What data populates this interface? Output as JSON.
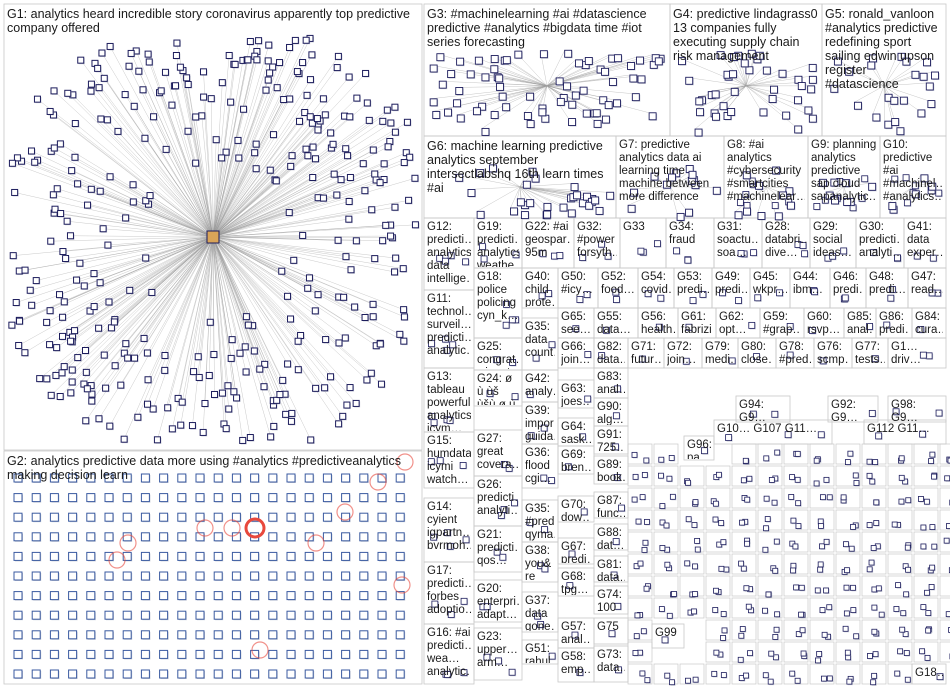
{
  "colors": {
    "edge": "#9a9a9a",
    "node_stroke": "#1c1c5c",
    "cell_border": "#c8c8c8",
    "highlight_ring": "#e8483c",
    "shadow": "#9aa0b4"
  },
  "groups": [
    {
      "id": "G1",
      "label": "G1: analytics heard incredible story coronavirus apparently top predictive company offered"
    },
    {
      "id": "G2",
      "label": "G2: analytics predictive data more using #analytics #predictiveanalytics making decision learn"
    },
    {
      "id": "G3",
      "label": "G3: #machinelearning #ai #datascience predictive #analytics #bigdata time #iot series forecasting"
    },
    {
      "id": "G4",
      "label": "G4: predictive lindagrass0 13 companies fully executing supply chain risk management"
    },
    {
      "id": "G5",
      "label": "G5: ronald_vanloon #analytics predictive redefining sport sailing edwin upson register #datascience"
    },
    {
      "id": "G6",
      "label": "G6: machine learning predictive analytics september intersectlabshq 16th learn times #ai"
    },
    {
      "id": "G7",
      "label": "G7: predictive analytics data ai learning time machine between more difference"
    },
    {
      "id": "G8",
      "label": "G8: #ai analytics #cybersecurity #smartcities #machinelear…"
    },
    {
      "id": "G9",
      "label": "G9: planning analytics predictive sap cloud sapanalytic…"
    },
    {
      "id": "G10",
      "label": "G10: predictive #ai #machinel… #analytics…"
    },
    {
      "id": "G12",
      "label": "G12: predicti… analytics data intellige…"
    },
    {
      "id": "G19",
      "label": "G19: predicti… analytics weathe…"
    },
    {
      "id": "G22",
      "label": "G22: #ai geospar… 95m"
    },
    {
      "id": "G32",
      "label": "G32: #power forsyth…"
    },
    {
      "id": "G33",
      "label": "G33"
    },
    {
      "id": "G34",
      "label": "G34: fraud"
    },
    {
      "id": "G31",
      "label": "G31: soactu… soa…"
    },
    {
      "id": "G28",
      "label": "G28: databri… dive…"
    },
    {
      "id": "G29",
      "label": "G29: social ideas…"
    },
    {
      "id": "G30",
      "label": "G30: predicti… analyti…"
    },
    {
      "id": "G41",
      "label": "G41: data exper…"
    },
    {
      "id": "G18",
      "label": "G18: police policing cyn_k…"
    },
    {
      "id": "G40",
      "label": "G40: child prote…"
    },
    {
      "id": "G50",
      "label": "G50: #icy…"
    },
    {
      "id": "G52",
      "label": "G52: food…"
    },
    {
      "id": "G54",
      "label": "G54: covid…"
    },
    {
      "id": "G53",
      "label": "G53: predi…"
    },
    {
      "id": "G49",
      "label": "G49: predi…"
    },
    {
      "id": "G45",
      "label": "G45: wkpr…"
    },
    {
      "id": "G44",
      "label": "G44: ibm…"
    },
    {
      "id": "G46",
      "label": "G46: predi…"
    },
    {
      "id": "G48",
      "label": "G48: predi…"
    },
    {
      "id": "G47",
      "label": "G47: read…"
    },
    {
      "id": "G11",
      "label": "G11: technol… surveil… predicti… analytic…"
    },
    {
      "id": "G25",
      "label": "G25: congrat… winnet…"
    },
    {
      "id": "G65",
      "label": "G65: see…"
    },
    {
      "id": "G55",
      "label": "G55: data…"
    },
    {
      "id": "G56",
      "label": "G56: health…"
    },
    {
      "id": "G61",
      "label": "G61: fabrizi…"
    },
    {
      "id": "G62",
      "label": "G62: opt…"
    },
    {
      "id": "G59",
      "label": "G59: #grap…"
    },
    {
      "id": "G60",
      "label": "G60: rsvp…"
    },
    {
      "id": "G85",
      "label": "G85: anal…"
    },
    {
      "id": "G86",
      "label": "G86: predi…"
    },
    {
      "id": "G84",
      "label": "G84: cura…"
    },
    {
      "id": "G35",
      "label": "G35: data count…"
    },
    {
      "id": "G66",
      "label": "G66: join…"
    },
    {
      "id": "G82",
      "label": "G82: data…"
    },
    {
      "id": "G71",
      "label": "G71: futur…"
    },
    {
      "id": "G72",
      "label": "G72: join…"
    },
    {
      "id": "G79",
      "label": "G79: medi…"
    },
    {
      "id": "G80",
      "label": "G80: close…"
    },
    {
      "id": "G78",
      "label": "G78: #pred…"
    },
    {
      "id": "G76",
      "label": "G76: scmp…"
    },
    {
      "id": "G77",
      "label": "G77: tests…"
    },
    {
      "id": "G1x",
      "label": "G1… driv…"
    },
    {
      "id": "G13",
      "label": "G13: tableau powerful analytics icym…"
    },
    {
      "id": "G42",
      "label": "G42: analy…"
    },
    {
      "id": "G83",
      "label": "G83: anal…"
    },
    {
      "id": "G24",
      "label": "G24: ø ù ùš ùšù ø ù ù ø"
    },
    {
      "id": "G63",
      "label": "G63: joes…"
    },
    {
      "id": "G90",
      "label": "G90: alg…"
    },
    {
      "id": "G94",
      "label": "G94: G9…"
    },
    {
      "id": "G92",
      "label": "G92: G9…"
    },
    {
      "id": "G98",
      "label": "G98: G9…"
    },
    {
      "id": "G15",
      "label": "G15: humdata icymi watch…"
    },
    {
      "id": "G39",
      "label": "G39: impor… guida…"
    },
    {
      "id": "G64",
      "label": "G64: sask…"
    },
    {
      "id": "G91",
      "label": "G91: 725…"
    },
    {
      "id": "G27",
      "label": "G27: great covera…"
    },
    {
      "id": "G36",
      "label": "G36: flood cgi…"
    },
    {
      "id": "G69",
      "label": "G69: bren…"
    },
    {
      "id": "G89",
      "label": "G89: book…"
    },
    {
      "id": "G96",
      "label": "G96: pa…"
    },
    {
      "id": "G107",
      "label": "G10… G107 G11…"
    },
    {
      "id": "G112",
      "label": "G112 G11…"
    },
    {
      "id": "G26",
      "label": "G26: predicti… analyti…"
    },
    {
      "id": "G70",
      "label": "G70: dow…"
    },
    {
      "id": "G87",
      "label": "G87: func…"
    },
    {
      "id": "G14",
      "label": "G14: cyient igpartn… bvrmoh…"
    },
    {
      "id": "G35b",
      "label": "G35: #pred… qyma…"
    },
    {
      "id": "G88",
      "label": "G88: dat…"
    },
    {
      "id": "G21",
      "label": "G21: predicti… qos…"
    },
    {
      "id": "G67",
      "label": "G67: predi…"
    },
    {
      "id": "G38",
      "label": "G38: you& re"
    },
    {
      "id": "G81",
      "label": "G81: data…"
    },
    {
      "id": "G17",
      "label": "G17: predicti… forbes adoptio…"
    },
    {
      "id": "G20",
      "label": "G20: enterpri… adapt…"
    },
    {
      "id": "G68",
      "label": "G68: tpg…"
    },
    {
      "id": "G74",
      "label": "G74: 100"
    },
    {
      "id": "G37",
      "label": "G37: data gone…"
    },
    {
      "id": "G75",
      "label": "G75"
    },
    {
      "id": "G99",
      "label": "G99"
    },
    {
      "id": "G16",
      "label": "G16: #ai predicti… wea… analytic…"
    },
    {
      "id": "G23",
      "label": "G23: upper… arm…"
    },
    {
      "id": "G51",
      "label": "G51: rahul…"
    },
    {
      "id": "G57",
      "label": "G57: anal…"
    },
    {
      "id": "G58",
      "label": "G58: emp…"
    },
    {
      "id": "G73",
      "label": "G73: data…"
    },
    {
      "id": "G118",
      "label": "G18…"
    }
  ]
}
